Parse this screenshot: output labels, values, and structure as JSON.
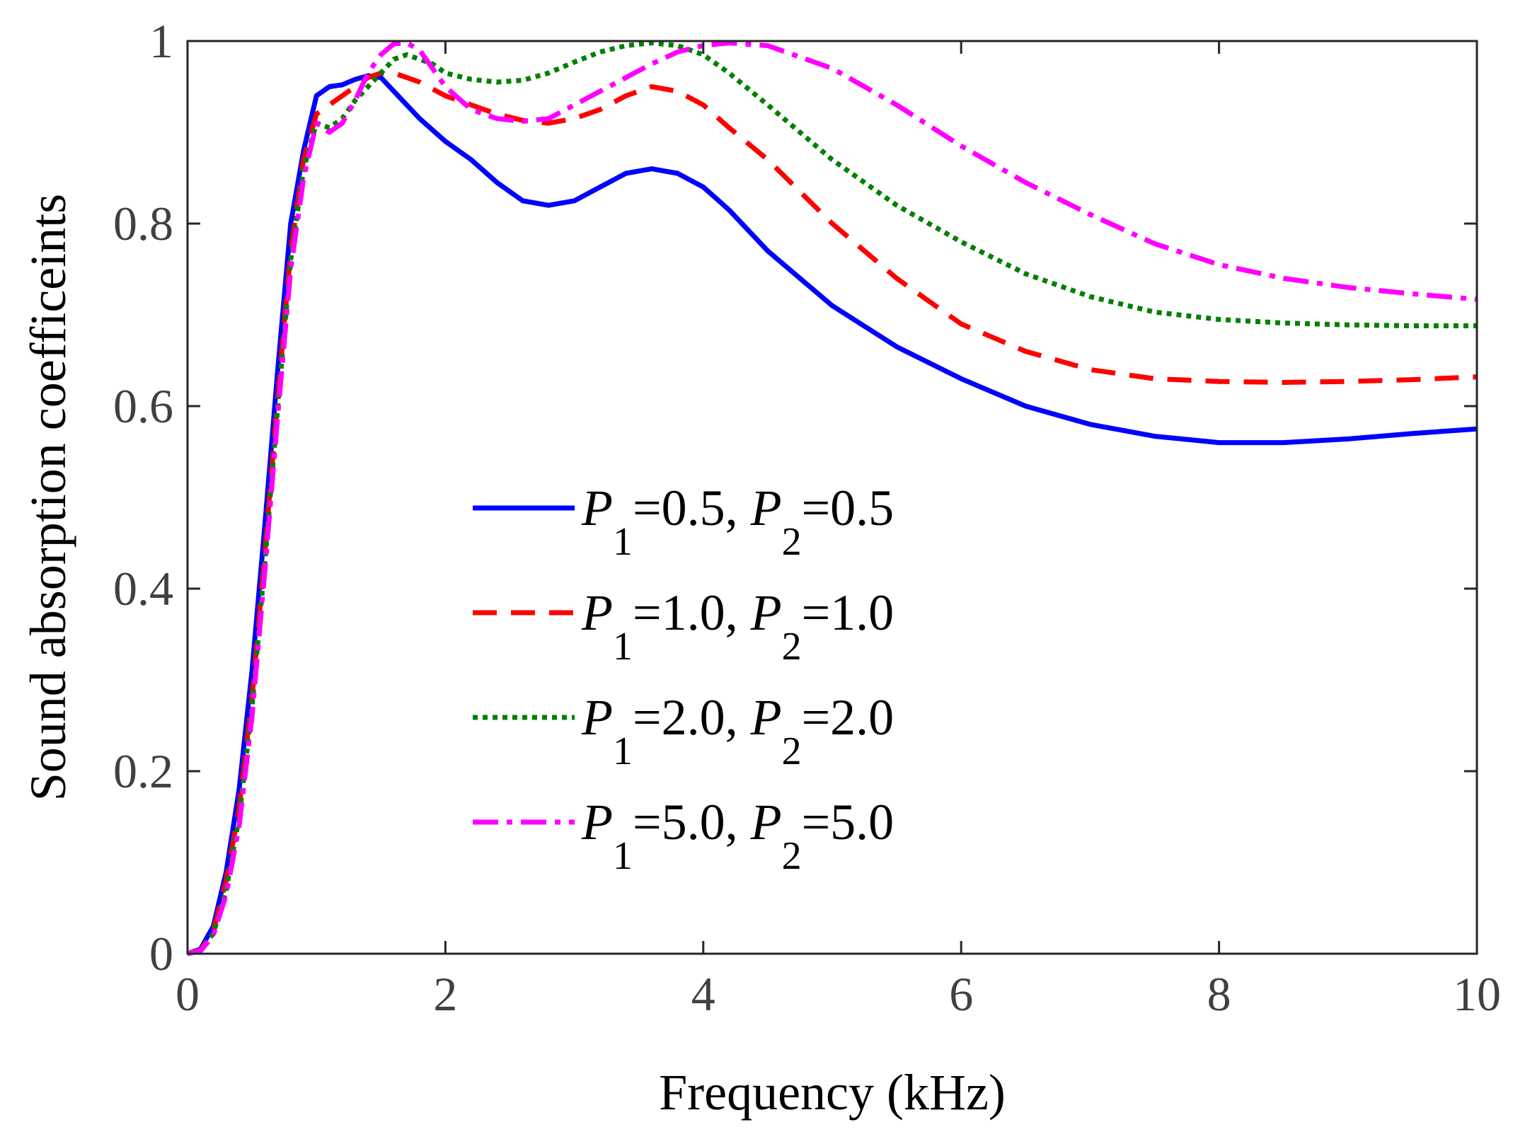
{
  "chart_data": {
    "type": "line",
    "title": "",
    "xlabel": "Frequency (kHz)",
    "ylabel": "Sound absorption coefficeints",
    "xlim": [
      0,
      10
    ],
    "ylim": [
      0,
      1
    ],
    "xticks": [
      0,
      2,
      4,
      6,
      8,
      10
    ],
    "yticks": [
      0,
      0.2,
      0.4,
      0.6,
      0.8,
      1
    ],
    "xtick_labels": [
      "0",
      "2",
      "4",
      "6",
      "8",
      "10"
    ],
    "ytick_labels": [
      "0",
      "0.2",
      "0.4",
      "0.6",
      "0.8",
      "1"
    ],
    "grid": false,
    "legend_position": "center",
    "series": [
      {
        "name": "P1=0.5, P2=0.5",
        "label": {
          "p1": "P",
          "s1": "1",
          "v1": "=0.5, ",
          "p2": "P",
          "s2": "2",
          "v2": "=0.5"
        },
        "color": "#0000ff",
        "style": "solid",
        "x": [
          0.0,
          0.1,
          0.2,
          0.3,
          0.4,
          0.5,
          0.6,
          0.7,
          0.8,
          0.9,
          1.0,
          1.1,
          1.2,
          1.3,
          1.4,
          1.5,
          1.6,
          1.8,
          2.0,
          2.2,
          2.4,
          2.6,
          2.8,
          3.0,
          3.2,
          3.4,
          3.6,
          3.8,
          4.0,
          4.2,
          4.5,
          5.0,
          5.5,
          6.0,
          6.5,
          7.0,
          7.5,
          8.0,
          8.5,
          9.0,
          9.5,
          10.0
        ],
        "y": [
          0.0,
          0.005,
          0.03,
          0.09,
          0.18,
          0.31,
          0.47,
          0.64,
          0.8,
          0.88,
          0.94,
          0.95,
          0.952,
          0.958,
          0.962,
          0.96,
          0.945,
          0.915,
          0.89,
          0.87,
          0.845,
          0.825,
          0.82,
          0.825,
          0.84,
          0.855,
          0.86,
          0.855,
          0.84,
          0.815,
          0.77,
          0.71,
          0.665,
          0.63,
          0.6,
          0.58,
          0.567,
          0.56,
          0.56,
          0.564,
          0.57,
          0.575
        ]
      },
      {
        "name": "P1=1.0, P2=1.0",
        "label": {
          "p1": "P",
          "s1": "1",
          "v1": "=1.0, ",
          "p2": "P",
          "s2": "2",
          "v2": "=1.0"
        },
        "color": "#ff0000",
        "style": "dashed",
        "x": [
          0.0,
          0.1,
          0.2,
          0.3,
          0.4,
          0.5,
          0.6,
          0.7,
          0.8,
          0.9,
          1.0,
          1.1,
          1.2,
          1.3,
          1.4,
          1.5,
          1.6,
          1.7,
          1.8,
          2.0,
          2.2,
          2.4,
          2.6,
          2.8,
          3.0,
          3.2,
          3.4,
          3.6,
          3.8,
          4.0,
          4.2,
          4.5,
          5.0,
          5.5,
          6.0,
          6.5,
          7.0,
          7.5,
          8.0,
          8.5,
          9.0,
          9.5,
          10.0
        ],
        "y": [
          0.0,
          0.004,
          0.025,
          0.08,
          0.16,
          0.28,
          0.44,
          0.61,
          0.77,
          0.87,
          0.92,
          0.93,
          0.94,
          0.95,
          0.96,
          0.965,
          0.965,
          0.96,
          0.955,
          0.94,
          0.93,
          0.92,
          0.913,
          0.91,
          0.915,
          0.925,
          0.94,
          0.95,
          0.945,
          0.93,
          0.905,
          0.87,
          0.8,
          0.74,
          0.69,
          0.66,
          0.64,
          0.63,
          0.627,
          0.626,
          0.627,
          0.629,
          0.632
        ]
      },
      {
        "name": "P1=2.0, P2=2.0",
        "label": {
          "p1": "P",
          "s1": "1",
          "v1": "=2.0, ",
          "p2": "P",
          "s2": "2",
          "v2": "=2.0"
        },
        "color": "#008000",
        "style": "dotted",
        "x": [
          0.0,
          0.1,
          0.2,
          0.3,
          0.4,
          0.5,
          0.6,
          0.7,
          0.8,
          0.9,
          1.0,
          1.1,
          1.2,
          1.3,
          1.4,
          1.5,
          1.6,
          1.7,
          1.8,
          1.9,
          2.0,
          2.2,
          2.4,
          2.6,
          2.8,
          3.0,
          3.2,
          3.4,
          3.6,
          3.8,
          4.0,
          4.2,
          4.5,
          5.0,
          5.5,
          6.0,
          6.5,
          7.0,
          7.5,
          8.0,
          8.5,
          9.0,
          9.5,
          10.0
        ],
        "y": [
          0.0,
          0.004,
          0.022,
          0.07,
          0.15,
          0.27,
          0.43,
          0.6,
          0.76,
          0.86,
          0.91,
          0.905,
          0.915,
          0.935,
          0.95,
          0.965,
          0.98,
          0.985,
          0.98,
          0.975,
          0.965,
          0.958,
          0.955,
          0.957,
          0.965,
          0.977,
          0.988,
          0.995,
          0.998,
          0.995,
          0.985,
          0.965,
          0.93,
          0.87,
          0.82,
          0.78,
          0.745,
          0.72,
          0.703,
          0.695,
          0.691,
          0.689,
          0.688,
          0.688
        ]
      },
      {
        "name": "P1=5.0, P2=5.0",
        "label": {
          "p1": "P",
          "s1": "1",
          "v1": "=5.0, ",
          "p2": "P",
          "s2": "2",
          "v2": "=5.0"
        },
        "color": "#ff00ff",
        "style": "dashdot",
        "x": [
          0.0,
          0.1,
          0.2,
          0.3,
          0.4,
          0.5,
          0.6,
          0.7,
          0.8,
          0.9,
          1.0,
          1.1,
          1.2,
          1.3,
          1.4,
          1.5,
          1.6,
          1.7,
          1.8,
          1.9,
          2.0,
          2.2,
          2.4,
          2.6,
          2.8,
          3.0,
          3.2,
          3.4,
          3.6,
          3.8,
          4.0,
          4.2,
          4.5,
          5.0,
          5.5,
          6.0,
          6.5,
          7.0,
          7.5,
          8.0,
          8.5,
          9.0,
          9.5,
          10.0
        ],
        "y": [
          0.0,
          0.003,
          0.02,
          0.065,
          0.14,
          0.26,
          0.42,
          0.59,
          0.75,
          0.85,
          0.91,
          0.9,
          0.91,
          0.935,
          0.965,
          0.985,
          0.997,
          0.998,
          0.99,
          0.97,
          0.95,
          0.925,
          0.915,
          0.912,
          0.915,
          0.93,
          0.945,
          0.96,
          0.975,
          0.988,
          0.995,
          0.998,
          0.995,
          0.97,
          0.93,
          0.885,
          0.845,
          0.81,
          0.778,
          0.755,
          0.74,
          0.73,
          0.723,
          0.717
        ]
      }
    ]
  }
}
